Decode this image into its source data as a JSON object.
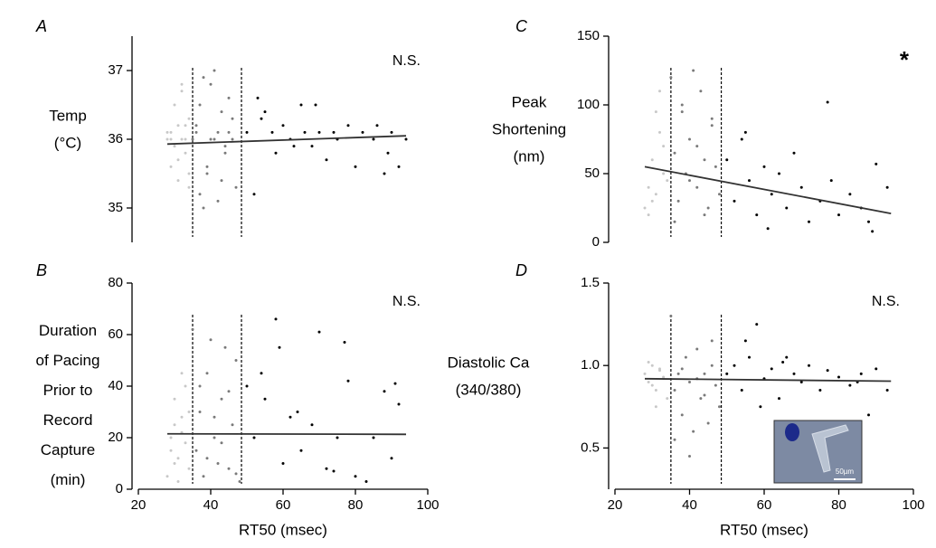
{
  "chart_data": [
    {
      "type": "scatter",
      "panel_label": "A",
      "annotation": "N.S.",
      "ylabel": [
        "Temp",
        "(°C)"
      ],
      "xlim": [
        20,
        100
      ],
      "ylim": [
        34.5,
        37.5
      ],
      "yticks": [
        35,
        36,
        37
      ],
      "vlines": [
        35,
        48.5
      ],
      "series": [
        {
          "color": "#c8c8c8",
          "x": [
            28,
            29,
            30,
            31,
            32,
            33,
            34,
            29,
            30,
            31,
            32,
            33,
            34,
            28,
            30,
            32,
            33,
            31,
            29,
            34
          ],
          "y": [
            36,
            36.1,
            35.9,
            36.2,
            36,
            35.8,
            36.3,
            35.6,
            36.5,
            35.4,
            36.7,
            36,
            35.5,
            36.1,
            35.9,
            36.8,
            36.2,
            35.7,
            36,
            35.3
          ]
        },
        {
          "color": "#7a7a7a",
          "x": [
            35,
            36,
            37,
            38,
            39,
            40,
            41,
            42,
            43,
            44,
            45,
            46,
            47,
            36,
            38,
            40,
            42,
            44,
            46,
            39,
            41,
            43,
            37,
            45
          ],
          "y": [
            36,
            36.1,
            35.2,
            36.9,
            35.5,
            36,
            37,
            35.1,
            36.4,
            35.8,
            36.6,
            36,
            35.3,
            36.2,
            35,
            36.8,
            36.1,
            35.9,
            36.3,
            35.6,
            36,
            35.4,
            36.5,
            36.1
          ]
        },
        {
          "color": "#000000",
          "x": [
            50,
            52,
            54,
            55,
            58,
            60,
            62,
            65,
            66,
            68,
            70,
            72,
            75,
            78,
            80,
            82,
            85,
            88,
            90,
            92,
            53,
            57,
            63,
            69,
            74,
            86,
            89,
            94
          ],
          "y": [
            36.1,
            35.2,
            36.3,
            36.4,
            35.8,
            36.2,
            36,
            36.5,
            36.1,
            35.9,
            36.1,
            35.7,
            36,
            36.2,
            35.6,
            36.1,
            36,
            35.5,
            36.1,
            35.6,
            36.6,
            36.1,
            35.9,
            36.5,
            36.1,
            36.2,
            35.8,
            36
          ]
        }
      ],
      "fit": {
        "x": [
          28,
          94
        ],
        "y": [
          35.93,
          36.05
        ]
      }
    },
    {
      "type": "scatter",
      "panel_label": "B",
      "annotation": "N.S.",
      "ylabel": [
        "Duration",
        "of Pacing",
        "Prior to",
        "Record",
        "Capture",
        "(min)"
      ],
      "xlabel": "RT50 (msec)",
      "xlim": [
        20,
        100
      ],
      "xticks": [
        20,
        40,
        60,
        80,
        100
      ],
      "ylim": [
        0,
        80
      ],
      "yticks": [
        0,
        20,
        40,
        60,
        80
      ],
      "vlines": [
        35,
        48.5
      ],
      "series": [
        {
          "color": "#c8c8c8",
          "x": [
            28,
            29,
            30,
            31,
            32,
            33,
            34,
            29,
            30,
            31,
            32,
            33,
            34,
            30,
            32
          ],
          "y": [
            5,
            20,
            35,
            12,
            28,
            40,
            8,
            15,
            25,
            3,
            45,
            18,
            30,
            10,
            22
          ]
        },
        {
          "color": "#7a7a7a",
          "x": [
            35,
            36,
            37,
            38,
            39,
            40,
            41,
            42,
            43,
            44,
            45,
            46,
            47,
            48,
            37,
            39,
            41,
            43,
            45,
            47
          ],
          "y": [
            62,
            15,
            30,
            5,
            45,
            58,
            20,
            10,
            35,
            55,
            8,
            25,
            50,
            3,
            40,
            12,
            28,
            18,
            38,
            6
          ]
        },
        {
          "color": "#000000",
          "x": [
            50,
            52,
            55,
            58,
            59,
            60,
            62,
            65,
            68,
            70,
            72,
            75,
            77,
            78,
            80,
            85,
            88,
            90,
            91,
            92,
            54,
            64,
            74,
            83
          ],
          "y": [
            40,
            20,
            35,
            66,
            55,
            10,
            28,
            15,
            25,
            61,
            8,
            20,
            57,
            42,
            5,
            20,
            38,
            12,
            41,
            33,
            45,
            30,
            7,
            3
          ]
        }
      ],
      "fit": {
        "x": [
          28,
          94
        ],
        "y": [
          21.5,
          21.3
        ]
      }
    },
    {
      "type": "scatter",
      "panel_label": "C",
      "annotation": "*",
      "ylabel": [
        "Peak",
        "Shortening",
        "(nm)"
      ],
      "xlim": [
        20,
        100
      ],
      "ylim": [
        0,
        150
      ],
      "yticks": [
        0,
        50,
        100,
        150
      ],
      "vlines": [
        35,
        48.5
      ],
      "series": [
        {
          "color": "#c8c8c8",
          "x": [
            28,
            29,
            30,
            31,
            32,
            33,
            34,
            29,
            31,
            33,
            30,
            32
          ],
          "y": [
            25,
            40,
            60,
            35,
            80,
            50,
            45,
            20,
            95,
            70,
            30,
            110
          ]
        },
        {
          "color": "#7a7a7a",
          "x": [
            35,
            36,
            37,
            38,
            39,
            40,
            41,
            42,
            43,
            44,
            45,
            46,
            47,
            48,
            36,
            38,
            40,
            42,
            44,
            46
          ],
          "y": [
            120,
            65,
            30,
            95,
            50,
            75,
            125,
            40,
            110,
            60,
            25,
            85,
            55,
            35,
            15,
            100,
            45,
            70,
            20,
            90
          ]
        },
        {
          "color": "#000000",
          "x": [
            50,
            52,
            54,
            56,
            58,
            60,
            62,
            64,
            66,
            68,
            70,
            72,
            75,
            77,
            80,
            83,
            86,
            88,
            90,
            93,
            55,
            61,
            78,
            89
          ],
          "y": [
            60,
            30,
            75,
            45,
            20,
            55,
            35,
            50,
            25,
            65,
            40,
            15,
            30,
            102,
            20,
            35,
            25,
            15,
            57,
            40,
            80,
            10,
            45,
            8
          ]
        }
      ],
      "fit": {
        "x": [
          28,
          94
        ],
        "y": [
          55,
          21
        ]
      }
    },
    {
      "type": "scatter",
      "panel_label": "D",
      "annotation": "N.S.",
      "ylabel": [
        "Diastolic Ca",
        "(340/380)"
      ],
      "xlabel": "RT50 (msec)",
      "xlim": [
        20,
        100
      ],
      "xticks": [
        20,
        40,
        60,
        80,
        100
      ],
      "ylim": [
        0.25,
        1.5
      ],
      "yticks": [
        0.5,
        {
          "value": 1,
          "label": "1.0"
        },
        1.5
      ],
      "vlines": [
        35,
        48.5
      ],
      "inset_label": "50µm",
      "series": [
        {
          "color": "#c8c8c8",
          "x": [
            28,
            29,
            30,
            31,
            32,
            33,
            34,
            29,
            31,
            33,
            30,
            32
          ],
          "y": [
            0.95,
            0.9,
            1.0,
            0.85,
            0.97,
            0.92,
            0.8,
            1.02,
            0.75,
            0.93,
            0.88,
            0.98
          ]
        },
        {
          "color": "#7a7a7a",
          "x": [
            35,
            36,
            37,
            38,
            39,
            40,
            41,
            42,
            43,
            44,
            45,
            46,
            47,
            48,
            36,
            38,
            40,
            42,
            44,
            46
          ],
          "y": [
            1.3,
            0.85,
            0.95,
            0.7,
            1.05,
            0.9,
            0.6,
            1.1,
            0.8,
            0.95,
            0.65,
            1.0,
            0.88,
            0.75,
            0.55,
            0.98,
            0.45,
            0.92,
            0.82,
            1.15
          ]
        },
        {
          "color": "#000000",
          "x": [
            50,
            52,
            54,
            56,
            58,
            60,
            62,
            64,
            66,
            68,
            70,
            72,
            75,
            77,
            80,
            83,
            86,
            88,
            90,
            93,
            55,
            59,
            65,
            85
          ],
          "y": [
            0.95,
            1.0,
            0.85,
            1.05,
            1.25,
            0.92,
            0.98,
            0.8,
            1.05,
            0.95,
            0.9,
            1.0,
            0.85,
            0.97,
            0.93,
            0.88,
            0.95,
            0.7,
            0.98,
            0.85,
            1.15,
            0.75,
            1.02,
            0.9
          ]
        }
      ],
      "fit": {
        "x": [
          28,
          94
        ],
        "y": [
          0.92,
          0.905
        ]
      }
    }
  ]
}
